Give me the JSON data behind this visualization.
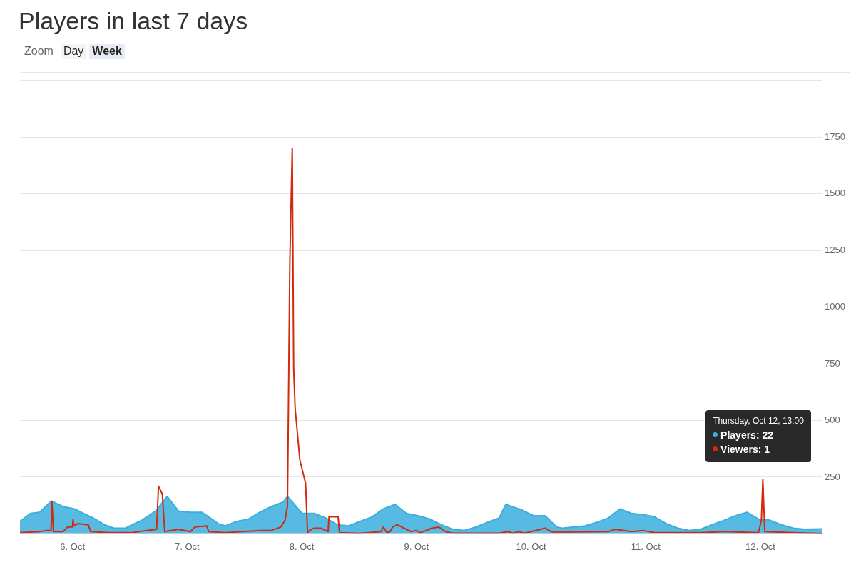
{
  "chart_data": {
    "type": "area",
    "title": "Players in last 7 days",
    "annotations": [
      "Thursday, Oct 12, 13:00",
      "Players: 22",
      "Viewers: 1",
      "Zoom",
      "Day",
      "Week"
    ],
    "xlim": [
      "--10-05T13:00",
      "--10-12T13:00"
    ],
    "xticks": [
      {
        "value": "--10-06",
        "label": "6. Oct"
      },
      {
        "value": "--10-07",
        "label": "7. Oct"
      },
      {
        "value": "--10-08",
        "label": "8. Oct"
      },
      {
        "value": "--10-09",
        "label": "9. Oct"
      },
      {
        "value": "--10-10",
        "label": "10. Oct"
      },
      {
        "value": "--10-11",
        "label": "11. Oct"
      },
      {
        "value": "--10-12",
        "label": "12. Oct"
      }
    ],
    "ylim": [
      0,
      2000
    ],
    "yticks": [
      {
        "value": 0,
        "label": null
      },
      250,
      500,
      750,
      1000,
      1250,
      1500,
      1750,
      {
        "value": 2000,
        "label": null
      }
    ],
    "grid": "y",
    "legend": false,
    "marker": "none",
    "line_style": "solid",
    "series": [
      {
        "color": "#3aaede",
        "x": [
          "--10-05T13:00",
          "--10-05T15:12",
          "--10-05T17:06",
          "--10-05T19:36",
          "--10-05T22:00",
          "--10-06T00:24",
          "--10-06T02:48",
          "--10-06T04:18",
          "--10-06T06:42",
          "--10-06T08:42",
          "--10-06T11:06",
          "--10-06T12:30",
          "--10-06T14:30",
          "--10-06T17:24",
          "--10-06T19:48",
          "--10-06T22:12",
          "--10-07T00:42",
          "--10-07T03:06",
          "--10-07T04:30",
          "--10-07T06:30",
          "--10-07T08:00",
          "--10-07T10:24",
          "--10-07T12:48",
          "--10-07T15:12",
          "--10-07T17:36",
          "--10-07T20:06",
          "--10-07T21:00",
          "--10-08T00:06",
          "--10-08T02:36",
          "--10-08T05:00",
          "--10-08T07:24",
          "--10-08T09:48",
          "--10-08T12:12",
          "--10-08T14:42",
          "--10-08T17:06",
          "--10-08T19:30",
          "--10-08T21:54",
          "--10-09T00:18",
          "--10-09T02:48",
          "--10-09T05:12",
          "--10-09T07:36",
          "--10-09T10:00",
          "--10-09T12:24",
          "--10-09T14:48",
          "--10-09T17:18",
          "--10-09T18:42",
          "--10-09T22:06",
          "--10-10T00:30",
          "--10-10T02:54",
          "--10-10T05:24",
          "--10-10T06:30",
          "--10-10T11:18",
          "--10-10T13:42",
          "--10-10T16:12",
          "--10-10T18:36",
          "--10-10T21:00",
          "--10-10T23:24",
          "--10-11T01:48",
          "--10-11T04:18",
          "--10-11T06:42",
          "--10-11T09:06",
          "--10-11T11:30",
          "--10-11T13:54",
          "--10-11T16:24",
          "--10-11T18:48",
          "--10-11T21:12",
          "--10-11T23:36",
          "--10-12T02:00",
          "--10-12T04:24",
          "--10-12T06:54",
          "--10-12T09:18",
          "--10-12T13:00"
        ],
        "values": [
          55,
          90,
          95,
          145,
          120,
          110,
          85,
          70,
          40,
          25,
          25,
          40,
          60,
          100,
          165,
          100,
          95,
          95,
          75,
          45,
          35,
          55,
          65,
          95,
          120,
          140,
          165,
          90,
          90,
          70,
          40,
          35,
          55,
          75,
          110,
          130,
          90,
          80,
          65,
          40,
          20,
          15,
          30,
          50,
          70,
          130,
          105,
          80,
          80,
          30,
          25,
          35,
          50,
          70,
          110,
          90,
          85,
          75,
          45,
          25,
          15,
          20,
          40,
          60,
          80,
          95,
          65,
          60,
          40,
          25,
          20,
          22
        ]
      },
      {
        "type": "line",
        "color": "#d42a0b",
        "x": [
          "--10-05T13:00",
          "--10-05T17:06",
          "--10-05T18:36",
          "--10-05T19:30",
          "--10-05T19:42",
          "--10-05T20:00",
          "--10-05T22:00",
          "--10-05T23:00",
          "--10-06T00:00",
          "--10-06T00:06",
          "--10-06T00:18",
          "--10-06T01:06",
          "--10-06T03:18",
          "--10-06T03:48",
          "--10-06T07:42",
          "--10-06T12:30",
          "--10-06T15:30",
          "--10-06T17:36",
          "--10-06T18:00",
          "--10-06T18:48",
          "--10-06T19:18",
          "--10-06T22:12",
          "--10-07T00:42",
          "--10-07T01:36",
          "--10-07T04:06",
          "--10-07T04:30",
          "--10-07T08:00",
          "--10-07T15:12",
          "--10-07T17:36",
          "--10-07T19:36",
          "--10-07T20:30",
          "--10-07T20:48",
          "--10-07T21:00",
          "--10-07T21:30",
          "--10-07T22:00",
          "--10-07T22:18",
          "--10-07T22:36",
          "--10-07T23:36",
          "--10-08T00:48",
          "--10-08T01:12",
          "--10-08T01:36",
          "--10-08T02:36",
          "--10-08T04:00",
          "--10-08T05:00",
          "--10-08T05:30",
          "--10-08T05:42",
          "--10-08T07:36",
          "--10-08T07:54",
          "--10-08T12:12",
          "--10-08T16:36",
          "--10-08T17:06",
          "--10-08T17:48",
          "--10-08T18:30",
          "--10-08T19:00",
          "--10-08T20:00",
          "--10-08T21:54",
          "--10-08T22:54",
          "--10-08T23:54",
          "--10-09T00:48",
          "--10-09T03:12",
          "--10-09T04:42",
          "--10-09T06:06",
          "--10-09T07:36",
          "--10-09T17:18",
          "--10-09T19:12",
          "--10-09T20:12",
          "--10-09T21:24",
          "--10-09T22:36",
          "--10-10T02:00",
          "--10-10T02:54",
          "--10-10T04:24",
          "--10-10T07:48",
          "--10-10T16:12",
          "--10-10T17:36",
          "--10-10T21:00",
          "--10-10T23:24",
          "--10-11T01:48",
          "--10-11T11:30",
          "--10-11T16:24",
          "--10-11T23:36",
          "--10-12T00:12",
          "--10-12T00:30",
          "--10-12T00:54",
          "--10-12T06:54",
          "--10-12T13:00"
        ],
        "values": [
          5,
          10,
          15,
          15,
          140,
          10,
          10,
          30,
          30,
          65,
          35,
          45,
          40,
          10,
          5,
          5,
          15,
          20,
          210,
          175,
          10,
          20,
          10,
          30,
          35,
          10,
          5,
          15,
          15,
          30,
          60,
          100,
          120,
          1200,
          1700,
          730,
          555,
          325,
          222,
          5,
          15,
          25,
          25,
          15,
          10,
          75,
          75,
          5,
          2,
          10,
          30,
          5,
          10,
          30,
          40,
          20,
          10,
          15,
          5,
          25,
          30,
          10,
          3,
          3,
          10,
          3,
          10,
          3,
          20,
          25,
          8,
          8,
          10,
          20,
          10,
          15,
          5,
          5,
          10,
          5,
          60,
          240,
          10,
          5,
          1
        ]
      }
    ]
  }
}
